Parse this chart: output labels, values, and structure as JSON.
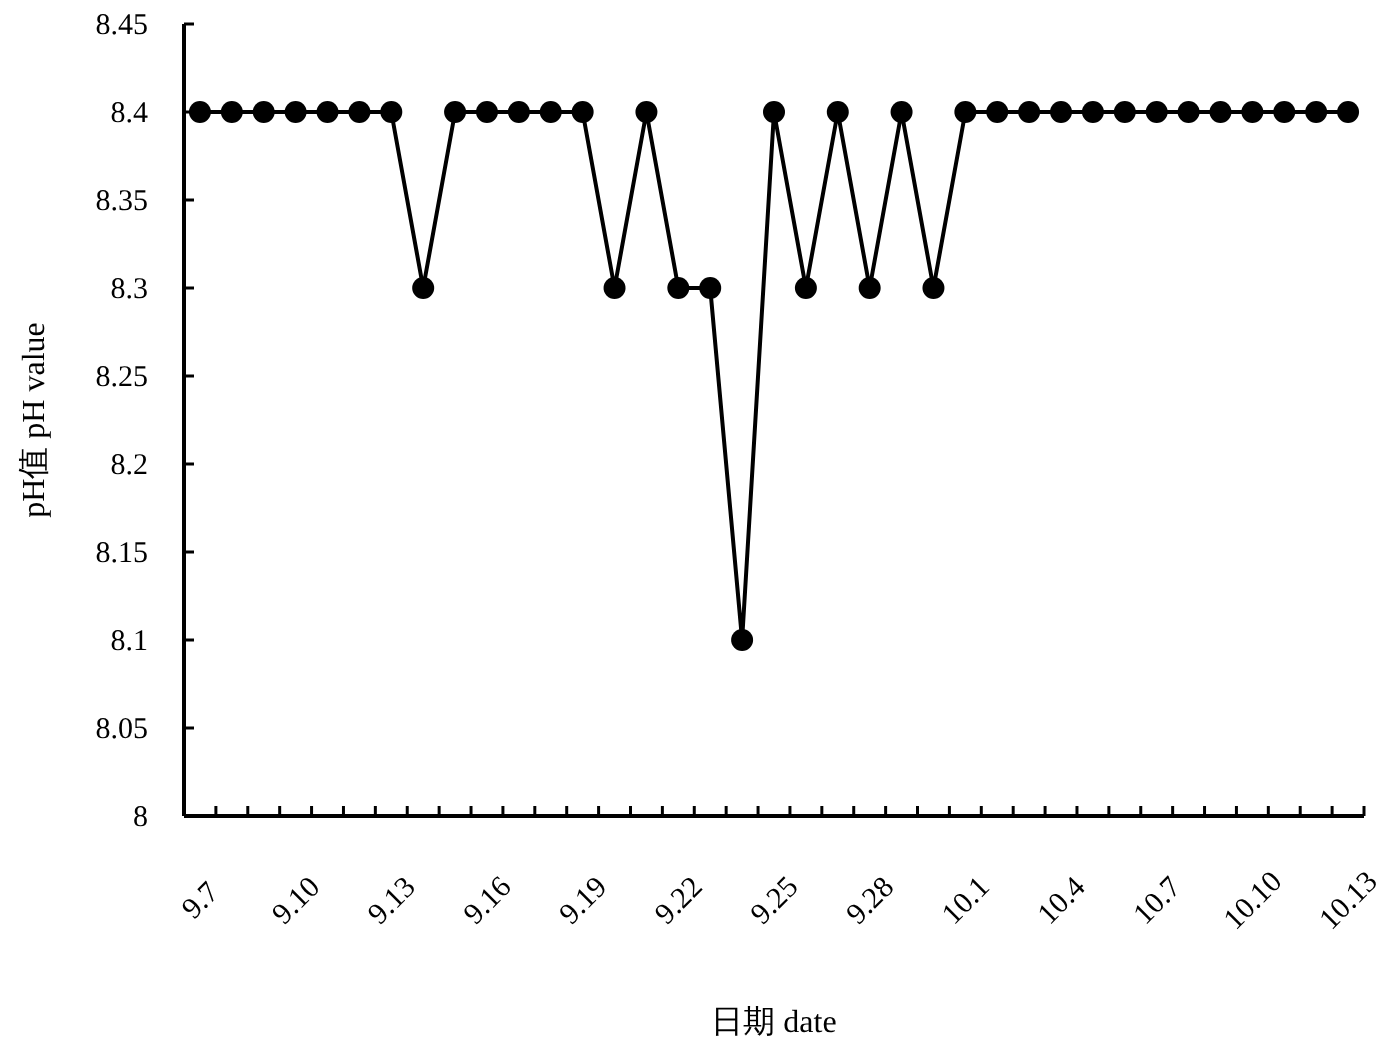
{
  "chart_data": {
    "type": "line",
    "xlabel": "日期 date",
    "ylabel": "pH值 pH value",
    "categories": [
      "9.7",
      null,
      null,
      "9.10",
      null,
      null,
      "9.13",
      null,
      null,
      "9.16",
      null,
      null,
      "9.19",
      null,
      null,
      "9.22",
      null,
      null,
      "9.25",
      null,
      null,
      "9.28",
      null,
      null,
      "10.1",
      null,
      null,
      "10.4",
      null,
      null,
      "10.7",
      null,
      null,
      "10.10",
      null,
      null,
      "10.13"
    ],
    "series": [
      {
        "color": "#000000",
        "values": [
          8.4,
          8.4,
          8.4,
          8.4,
          8.4,
          8.4,
          8.4,
          8.3,
          8.4,
          8.4,
          8.4,
          8.4,
          8.4,
          8.3,
          8.4,
          8.3,
          8.3,
          8.1,
          8.4,
          8.3,
          8.4,
          8.3,
          8.4,
          8.3,
          8.4,
          8.4,
          8.4,
          8.4,
          8.4,
          8.4,
          8.4,
          8.4,
          8.4,
          8.4,
          8.4,
          8.4,
          8.4
        ]
      }
    ],
    "ylim": [
      8,
      8.45
    ],
    "yticks": [
      8,
      8.05,
      8.1,
      8.15,
      8.2,
      8.25,
      8.3,
      8.35,
      8.4,
      8.45
    ],
    "marker": "circle"
  }
}
